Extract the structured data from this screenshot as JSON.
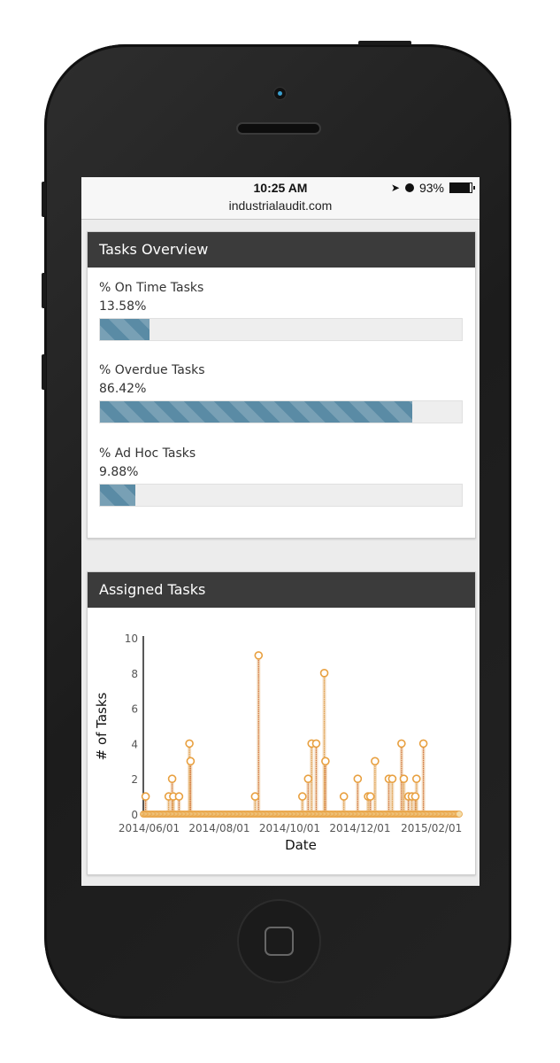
{
  "status_bar": {
    "time": "10:25 AM",
    "battery": "93%",
    "battery_level": 0.93,
    "icons": [
      "location-arrow-icon",
      "alarm-icon",
      "battery-icon"
    ]
  },
  "browser": {
    "url": "industrialaudit.com"
  },
  "overview": {
    "title": "Tasks Overview",
    "metrics": [
      {
        "label": "% On Time Tasks",
        "value": "13.58%",
        "percent": 13.58
      },
      {
        "label": "% Overdue Tasks",
        "value": "86.42%",
        "percent": 86.42
      },
      {
        "label": "% Ad Hoc Tasks",
        "value": "9.88%",
        "percent": 9.88
      }
    ],
    "bar_color": "#5a8ba5"
  },
  "assigned": {
    "title": "Assigned Tasks"
  },
  "chart_data": {
    "type": "line",
    "xlabel": "Date",
    "ylabel": "# of Tasks",
    "xlim": [
      "2014-05-27",
      "2015-02-25"
    ],
    "ylim": [
      0,
      10
    ],
    "yticks": [
      "0",
      "2",
      "4",
      "6",
      "8",
      "10"
    ],
    "xticks": [
      "2014/06/01",
      "2014/08/01",
      "2014/10/01",
      "2014/12/01",
      "2015/02/01"
    ],
    "xtick_dates": [
      "2014-06-01",
      "2014-08-01",
      "2014-10-01",
      "2014-12-01",
      "2015-02-01"
    ],
    "baseline_value": 0,
    "points": [
      {
        "x": "2014-05-29",
        "y": 1
      },
      {
        "x": "2014-06-18",
        "y": 1
      },
      {
        "x": "2014-06-21",
        "y": 2
      },
      {
        "x": "2014-06-22",
        "y": 1
      },
      {
        "x": "2014-06-27",
        "y": 1
      },
      {
        "x": "2014-07-06",
        "y": 4
      },
      {
        "x": "2014-07-07",
        "y": 3
      },
      {
        "x": "2014-09-01",
        "y": 1
      },
      {
        "x": "2014-09-04",
        "y": 9
      },
      {
        "x": "2014-10-12",
        "y": 1
      },
      {
        "x": "2014-10-17",
        "y": 2
      },
      {
        "x": "2014-10-20",
        "y": 4
      },
      {
        "x": "2014-10-24",
        "y": 4
      },
      {
        "x": "2014-10-31",
        "y": 8
      },
      {
        "x": "2014-11-01",
        "y": 3
      },
      {
        "x": "2014-11-17",
        "y": 1
      },
      {
        "x": "2014-11-29",
        "y": 2
      },
      {
        "x": "2014-12-08",
        "y": 1
      },
      {
        "x": "2014-12-10",
        "y": 1
      },
      {
        "x": "2014-12-14",
        "y": 3
      },
      {
        "x": "2014-12-26",
        "y": 2
      },
      {
        "x": "2014-12-29",
        "y": 2
      },
      {
        "x": "2015-01-06",
        "y": 4
      },
      {
        "x": "2015-01-08",
        "y": 2
      },
      {
        "x": "2015-01-12",
        "y": 1
      },
      {
        "x": "2015-01-15",
        "y": 1
      },
      {
        "x": "2015-01-18",
        "y": 1
      },
      {
        "x": "2015-01-19",
        "y": 2
      },
      {
        "x": "2015-01-25",
        "y": 4
      }
    ],
    "colors": {
      "stem": "#e0a050",
      "stem_dark": "#c9623a",
      "marker": "#e8a040",
      "axis": "#222222"
    },
    "grid": false,
    "legend": "none"
  }
}
